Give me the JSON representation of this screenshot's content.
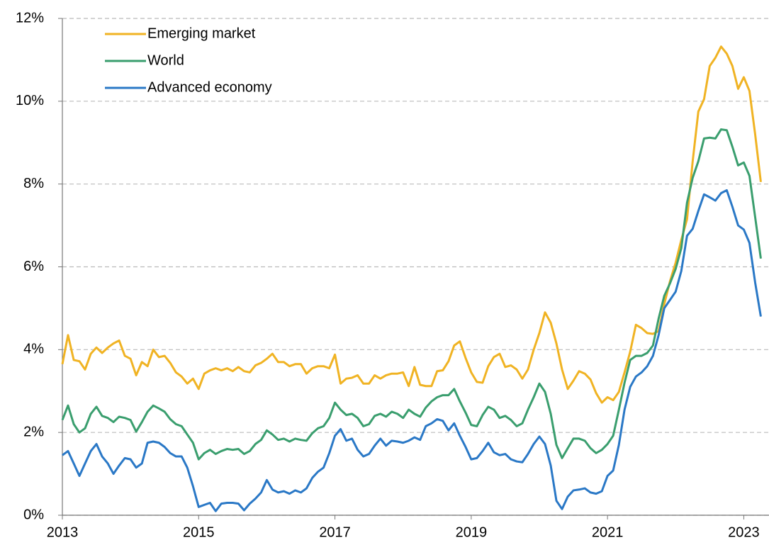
{
  "chart_data": {
    "type": "line",
    "x": [
      2013,
      2013.083,
      2013.167,
      2013.25,
      2013.333,
      2013.417,
      2013.5,
      2013.583,
      2013.667,
      2013.75,
      2013.833,
      2013.917,
      2014,
      2014.083,
      2014.167,
      2014.25,
      2014.333,
      2014.417,
      2014.5,
      2014.583,
      2014.667,
      2014.75,
      2014.833,
      2014.917,
      2015,
      2015.083,
      2015.167,
      2015.25,
      2015.333,
      2015.417,
      2015.5,
      2015.583,
      2015.667,
      2015.75,
      2015.833,
      2015.917,
      2016,
      2016.083,
      2016.167,
      2016.25,
      2016.333,
      2016.417,
      2016.5,
      2016.583,
      2016.667,
      2016.75,
      2016.833,
      2016.917,
      2017,
      2017.083,
      2017.167,
      2017.25,
      2017.333,
      2017.417,
      2017.5,
      2017.583,
      2017.667,
      2017.75,
      2017.833,
      2017.917,
      2018,
      2018.083,
      2018.167,
      2018.25,
      2018.333,
      2018.417,
      2018.5,
      2018.583,
      2018.667,
      2018.75,
      2018.833,
      2018.917,
      2019,
      2019.083,
      2019.167,
      2019.25,
      2019.333,
      2019.417,
      2019.5,
      2019.583,
      2019.667,
      2019.75,
      2019.833,
      2019.917,
      2020,
      2020.083,
      2020.167,
      2020.25,
      2020.333,
      2020.417,
      2020.5,
      2020.583,
      2020.667,
      2020.75,
      2020.833,
      2020.917,
      2021,
      2021.083,
      2021.167,
      2021.25,
      2021.333,
      2021.417,
      2021.5,
      2021.583,
      2021.667,
      2021.75,
      2021.833,
      2021.917,
      2022,
      2022.083,
      2022.167,
      2022.25,
      2022.333,
      2022.417,
      2022.5,
      2022.583,
      2022.667,
      2022.75,
      2022.833,
      2022.917,
      2023,
      2023.083,
      2023.167,
      2023.25
    ],
    "series": [
      {
        "name": "Emerging market",
        "color": "#f0b323",
        "values": [
          3.65,
          4.35,
          3.75,
          3.72,
          3.52,
          3.9,
          4.05,
          3.92,
          4.05,
          4.15,
          4.22,
          3.85,
          3.78,
          3.38,
          3.7,
          3.6,
          4.0,
          3.82,
          3.85,
          3.68,
          3.45,
          3.35,
          3.18,
          3.3,
          3.05,
          3.42,
          3.5,
          3.55,
          3.5,
          3.55,
          3.48,
          3.58,
          3.48,
          3.45,
          3.62,
          3.68,
          3.78,
          3.9,
          3.7,
          3.7,
          3.6,
          3.65,
          3.65,
          3.42,
          3.55,
          3.6,
          3.6,
          3.55,
          3.88,
          3.18,
          3.3,
          3.32,
          3.38,
          3.18,
          3.18,
          3.38,
          3.3,
          3.38,
          3.42,
          3.42,
          3.45,
          3.12,
          3.58,
          3.15,
          3.12,
          3.12,
          3.48,
          3.5,
          3.72,
          4.1,
          4.2,
          3.8,
          3.45,
          3.22,
          3.2,
          3.6,
          3.82,
          3.9,
          3.58,
          3.62,
          3.52,
          3.3,
          3.52,
          4.0,
          4.4,
          4.9,
          4.65,
          4.15,
          3.52,
          3.05,
          3.25,
          3.48,
          3.42,
          3.28,
          2.95,
          2.72,
          2.85,
          2.78,
          2.98,
          3.45,
          3.95,
          4.6,
          4.52,
          4.4,
          4.38,
          4.45,
          5.1,
          5.65,
          6.1,
          6.65,
          7.15,
          8.55,
          9.75,
          10.05,
          10.85,
          11.05,
          11.32,
          11.15,
          10.85,
          10.3,
          10.58,
          10.25,
          9.2,
          8.05
        ]
      },
      {
        "name": "World",
        "color": "#3a9e6e",
        "values": [
          2.3,
          2.65,
          2.2,
          2.0,
          2.1,
          2.45,
          2.62,
          2.4,
          2.35,
          2.25,
          2.38,
          2.35,
          2.3,
          2.02,
          2.25,
          2.5,
          2.65,
          2.58,
          2.5,
          2.32,
          2.2,
          2.15,
          1.95,
          1.75,
          1.35,
          1.5,
          1.58,
          1.48,
          1.55,
          1.6,
          1.58,
          1.6,
          1.48,
          1.55,
          1.72,
          1.82,
          2.05,
          1.95,
          1.82,
          1.85,
          1.78,
          1.85,
          1.82,
          1.8,
          1.98,
          2.1,
          2.15,
          2.35,
          2.72,
          2.55,
          2.42,
          2.45,
          2.35,
          2.15,
          2.2,
          2.4,
          2.45,
          2.38,
          2.5,
          2.45,
          2.35,
          2.55,
          2.45,
          2.38,
          2.6,
          2.75,
          2.85,
          2.9,
          2.9,
          3.05,
          2.75,
          2.48,
          2.18,
          2.15,
          2.42,
          2.62,
          2.55,
          2.35,
          2.4,
          2.3,
          2.15,
          2.22,
          2.55,
          2.85,
          3.18,
          2.98,
          2.45,
          1.7,
          1.38,
          1.62,
          1.85,
          1.85,
          1.8,
          1.62,
          1.5,
          1.58,
          1.72,
          1.92,
          2.55,
          3.2,
          3.75,
          3.85,
          3.85,
          3.92,
          4.1,
          4.75,
          5.3,
          5.6,
          5.95,
          6.45,
          7.55,
          8.15,
          8.55,
          9.1,
          9.12,
          9.1,
          9.32,
          9.3,
          8.9,
          8.45,
          8.52,
          8.2,
          7.2,
          6.2
        ]
      },
      {
        "name": "Advanced economy",
        "color": "#2a78c6",
        "values": [
          1.45,
          1.55,
          1.25,
          0.95,
          1.25,
          1.55,
          1.72,
          1.42,
          1.25,
          1.0,
          1.2,
          1.38,
          1.35,
          1.15,
          1.25,
          1.75,
          1.78,
          1.75,
          1.65,
          1.5,
          1.42,
          1.42,
          1.15,
          0.7,
          0.2,
          0.25,
          0.3,
          0.1,
          0.28,
          0.3,
          0.3,
          0.28,
          0.12,
          0.28,
          0.4,
          0.55,
          0.85,
          0.62,
          0.55,
          0.58,
          0.52,
          0.6,
          0.55,
          0.65,
          0.9,
          1.05,
          1.15,
          1.5,
          1.92,
          2.08,
          1.8,
          1.85,
          1.58,
          1.42,
          1.48,
          1.68,
          1.85,
          1.68,
          1.8,
          1.78,
          1.75,
          1.8,
          1.88,
          1.82,
          2.15,
          2.22,
          2.32,
          2.28,
          2.05,
          2.22,
          1.92,
          1.65,
          1.35,
          1.38,
          1.55,
          1.75,
          1.52,
          1.45,
          1.48,
          1.35,
          1.3,
          1.28,
          1.48,
          1.72,
          1.9,
          1.72,
          1.2,
          0.35,
          0.15,
          0.45,
          0.6,
          0.62,
          0.65,
          0.55,
          0.52,
          0.58,
          0.95,
          1.08,
          1.7,
          2.55,
          3.1,
          3.35,
          3.45,
          3.6,
          3.85,
          4.35,
          5.0,
          5.2,
          5.4,
          5.9,
          6.75,
          6.92,
          7.35,
          7.75,
          7.68,
          7.6,
          7.78,
          7.85,
          7.45,
          7.0,
          6.9,
          6.58,
          5.62,
          4.8
        ]
      }
    ],
    "xlim": [
      2013,
      2023.37
    ],
    "xticks": [
      2013,
      2015,
      2017,
      2019,
      2021,
      2023
    ],
    "ylim": [
      0,
      12
    ],
    "yticks": [
      {
        "value": 0,
        "label": "0%"
      },
      {
        "value": 2,
        "label": "2%"
      },
      {
        "value": 4,
        "label": "4%"
      },
      {
        "value": 6,
        "label": "6%"
      },
      {
        "value": 8,
        "label": "8%"
      },
      {
        "value": 10,
        "label": "10%"
      },
      {
        "value": 12,
        "label": "12%"
      }
    ],
    "grid": true,
    "legend": "upper left"
  }
}
